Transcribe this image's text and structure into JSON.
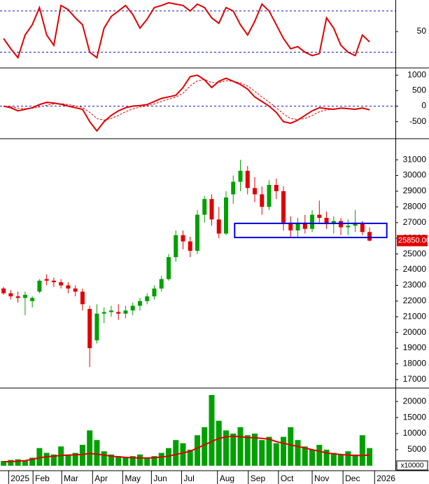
{
  "chart_data": [
    {
      "type": "line",
      "color": "#e00000",
      "x": [
        0,
        1,
        2,
        3,
        4,
        5,
        6,
        7,
        8,
        9,
        10,
        11,
        12,
        13,
        14,
        15,
        16,
        17,
        18,
        19,
        20,
        21,
        22,
        23,
        24,
        25,
        26,
        27,
        28,
        29,
        30,
        31,
        32,
        33,
        34,
        35,
        36,
        37,
        38,
        39,
        40,
        41,
        42,
        43,
        44,
        45,
        46,
        47,
        48,
        49,
        50,
        51
      ],
      "values": [
        40,
        25,
        12,
        45,
        60,
        85,
        45,
        30,
        88,
        82,
        70,
        60,
        20,
        12,
        55,
        72,
        80,
        88,
        75,
        55,
        68,
        85,
        88,
        92,
        90,
        88,
        80,
        90,
        85,
        70,
        62,
        85,
        80,
        60,
        45,
        65,
        90,
        80,
        60,
        40,
        25,
        28,
        20,
        15,
        18,
        70,
        55,
        30,
        20,
        15,
        45,
        35
      ],
      "xlim": [
        -0.5,
        54.6
      ],
      "ylim": [
        -3,
        96
      ],
      "yticks": [
        50
      ],
      "levels": [
        20,
        80
      ],
      "level_color": "#1a1acc"
    },
    {
      "type": "line",
      "color": "#e00000",
      "x": [
        0,
        1,
        2,
        3,
        4,
        5,
        6,
        7,
        8,
        9,
        10,
        11,
        12,
        13,
        14,
        15,
        16,
        17,
        18,
        19,
        20,
        21,
        22,
        23,
        24,
        25,
        26,
        27,
        28,
        29,
        30,
        31,
        32,
        33,
        34,
        35,
        36,
        37,
        38,
        39,
        40,
        41,
        42,
        43,
        44,
        45,
        46,
        47,
        48,
        49,
        50,
        51
      ],
      "values": [
        0,
        -50,
        -150,
        -100,
        -50,
        50,
        120,
        100,
        60,
        0,
        -50,
        -100,
        -500,
        -800,
        -500,
        -300,
        -150,
        -50,
        0,
        20,
        50,
        150,
        250,
        300,
        350,
        600,
        950,
        1000,
        850,
        600,
        800,
        900,
        800,
        700,
        550,
        300,
        150,
        0,
        -200,
        -500,
        -550,
        -450,
        -300,
        -150,
        -50,
        -80,
        -100,
        -60,
        -80,
        -100,
        -60,
        -120
      ],
      "signal_values": [
        0,
        -20,
        -60,
        -80,
        -70,
        -30,
        30,
        70,
        80,
        50,
        10,
        -40,
        -200,
        -400,
        -450,
        -400,
        -300,
        -180,
        -90,
        -30,
        10,
        70,
        150,
        230,
        290,
        420,
        650,
        820,
        860,
        760,
        760,
        820,
        800,
        750,
        650,
        480,
        300,
        130,
        -50,
        -250,
        -400,
        -430,
        -400,
        -300,
        -180,
        -120,
        -100,
        -80,
        -80,
        -90,
        -80,
        -100
      ],
      "xlim": [
        -0.5,
        54.6
      ],
      "ylim": [
        -1050,
        1210
      ],
      "yticks": [
        -500,
        0,
        500,
        1000
      ],
      "levels": [
        0
      ],
      "level_color": "#1a1acc"
    },
    {
      "type": "candlestick",
      "up_color": "#00a000",
      "down_color": "#e00000",
      "x": [
        0,
        1,
        2,
        3,
        4,
        5,
        6,
        7,
        8,
        9,
        10,
        11,
        12,
        13,
        14,
        15,
        16,
        17,
        18,
        19,
        20,
        21,
        22,
        23,
        24,
        25,
        26,
        27,
        28,
        29,
        30,
        31,
        32,
        33,
        34,
        35,
        36,
        37,
        38,
        39,
        40,
        41,
        42,
        43,
        44,
        45,
        46,
        47,
        48,
        49,
        50,
        51
      ],
      "open": [
        22800,
        22500,
        22300,
        22200,
        22000,
        22600,
        23400,
        23300,
        23200,
        23000,
        22800,
        22600,
        21500,
        19500,
        21200,
        21300,
        21300,
        21200,
        21400,
        21700,
        22000,
        22300,
        22800,
        23400,
        24800,
        26200,
        25800,
        25200,
        27500,
        28500,
        27200,
        26300,
        28800,
        29600,
        30300,
        29200,
        28800,
        28000,
        29400,
        29000,
        27000,
        26500,
        27000,
        26600,
        27500,
        27300,
        26900,
        27100,
        26700,
        26800,
        27000,
        26400
      ],
      "high": [
        22900,
        22700,
        22600,
        22600,
        22300,
        23400,
        23700,
        23500,
        23400,
        23200,
        23000,
        22800,
        21700,
        21800,
        21600,
        21700,
        21800,
        21700,
        21900,
        22200,
        22500,
        23000,
        23600,
        25000,
        26500,
        26500,
        26100,
        27800,
        28700,
        28800,
        28000,
        29000,
        30000,
        31000,
        30600,
        29900,
        29300,
        29700,
        29800,
        29300,
        27400,
        27300,
        27500,
        27800,
        28400,
        27700,
        27400,
        27300,
        27200,
        27800,
        27100,
        26700
      ],
      "low": [
        22400,
        22100,
        21900,
        21100,
        21600,
        22500,
        23000,
        22900,
        22800,
        22500,
        22300,
        21400,
        17800,
        19300,
        20600,
        21000,
        20800,
        20900,
        21100,
        21400,
        21800,
        22100,
        22600,
        23300,
        24500,
        25300,
        24800,
        25000,
        27000,
        26800,
        26000,
        26200,
        28200,
        29000,
        28800,
        28300,
        27500,
        27800,
        28500,
        26500,
        26100,
        26100,
        26300,
        26400,
        27000,
        26600,
        26300,
        26200,
        26200,
        26400,
        26200,
        25800
      ],
      "close": [
        22500,
        22300,
        22200,
        22400,
        22200,
        23300,
        23300,
        23200,
        23000,
        22800,
        22600,
        21800,
        19000,
        21200,
        21300,
        21400,
        21200,
        21400,
        21700,
        22000,
        22300,
        22800,
        23400,
        24800,
        26200,
        25800,
        25200,
        27500,
        28500,
        27200,
        26300,
        28600,
        29600,
        30300,
        29200,
        28800,
        28000,
        29400,
        29000,
        27000,
        26500,
        27000,
        26600,
        27500,
        27300,
        26900,
        27100,
        26700,
        26800,
        27000,
        26400,
        25850
      ],
      "last_label": {
        "value": 25850,
        "label": "25850.00"
      },
      "last_label_color": "#e00000",
      "highlight_box": {
        "x": [
          32.2,
          53.4
        ],
        "y": [
          26050,
          26950
        ],
        "color": "#0000e0"
      },
      "xlim": [
        -0.5,
        54.6
      ],
      "ylim": [
        16460,
        32300
      ],
      "yticks": [
        17000,
        18000,
        19000,
        20000,
        21000,
        22000,
        23000,
        24000,
        25000,
        26000,
        27000,
        28000,
        29000,
        30000,
        31000
      ]
    },
    {
      "type": "bar",
      "color": "#00a000",
      "x": [
        0,
        1,
        2,
        3,
        4,
        5,
        6,
        7,
        8,
        9,
        10,
        11,
        12,
        13,
        14,
        15,
        16,
        17,
        18,
        19,
        20,
        21,
        22,
        23,
        24,
        25,
        26,
        27,
        28,
        29,
        30,
        31,
        32,
        33,
        34,
        35,
        36,
        37,
        38,
        39,
        40,
        41,
        42,
        43,
        44,
        45,
        46,
        47,
        48,
        49,
        50,
        51
      ],
      "values": [
        1500,
        1800,
        2000,
        1700,
        2500,
        5500,
        4000,
        3500,
        6000,
        3500,
        4000,
        6500,
        11000,
        8000,
        4500,
        3500,
        3000,
        2500,
        3000,
        3500,
        2500,
        3000,
        4000,
        5500,
        8000,
        7000,
        5000,
        9500,
        12000,
        22000,
        14000,
        11000,
        10000,
        12000,
        9500,
        10000,
        8000,
        9000,
        7000,
        9000,
        12000,
        8000,
        6000,
        5000,
        6500,
        5000,
        4000,
        3500,
        4500,
        3500,
        9500,
        5500
      ],
      "line": {
        "color": "#e00000",
        "values": [
          1200,
          1300,
          1400,
          1600,
          2000,
          2500,
          2800,
          3000,
          3200,
          3300,
          3400,
          3500,
          3800,
          3600,
          3300,
          3000,
          2800,
          2600,
          2500,
          2400,
          2400,
          2500,
          2700,
          3000,
          3500,
          4000,
          4500,
          5500,
          6500,
          7500,
          8500,
          9000,
          9200,
          9000,
          8800,
          8700,
          8500,
          8300,
          7500,
          7000,
          6500,
          6000,
          5500,
          5000,
          4500,
          4000,
          3700,
          3500,
          3300,
          3200,
          3200,
          3300
        ]
      },
      "unit_label": "x10000",
      "xlim": [
        -0.5,
        54.6
      ],
      "ylim": [
        -1540,
        23960
      ],
      "yticks": [
        0,
        5000,
        10000,
        15000,
        20000
      ],
      "xticks": [
        {
          "value": 0.7,
          "label": "2025"
        },
        {
          "value": 4.1,
          "label": "Feb"
        },
        {
          "value": 8.1,
          "label": "Mar"
        },
        {
          "value": 12.4,
          "label": "Apr"
        },
        {
          "value": 16.6,
          "label": "May"
        },
        {
          "value": 20.6,
          "label": "Jun"
        },
        {
          "value": 24.8,
          "label": "Jul"
        },
        {
          "value": 29.8,
          "label": "Aug"
        },
        {
          "value": 34.1,
          "label": "Sep"
        },
        {
          "value": 38.3,
          "label": "Oct"
        },
        {
          "value": 43.0,
          "label": "Nov"
        },
        {
          "value": 47.3,
          "label": "Dec"
        },
        {
          "value": 51.7,
          "label": "2026"
        }
      ]
    }
  ]
}
